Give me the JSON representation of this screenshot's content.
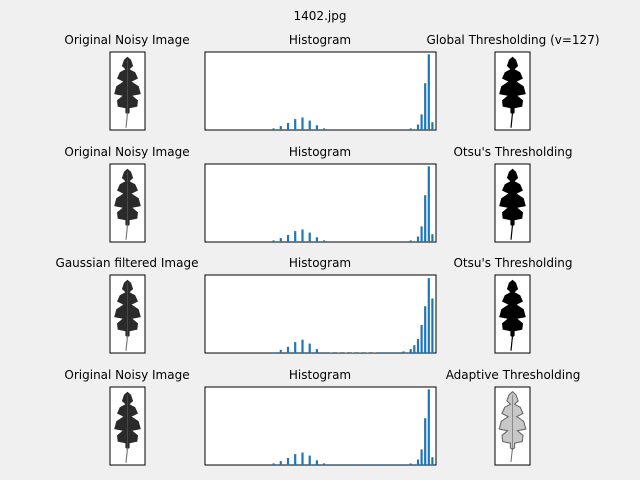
{
  "figure": {
    "suptitle": "1402.jpg"
  },
  "colors": {
    "figure_bg": "#f0f0f0",
    "bar": "#1f77b4",
    "leaf_gray": "#2a2a2a",
    "leaf_black": "#000000",
    "vein": "#7a7a7a"
  },
  "rows": [
    {
      "left_title": "Original Noisy Image",
      "hist_title": "Histogram",
      "right_title": "Global Thresholding (v=127)",
      "left_icon": "leaf-grayscale-icon",
      "right_icon": "leaf-binary-icon"
    },
    {
      "left_title": "Original Noisy Image",
      "hist_title": "Histogram",
      "right_title": "Otsu's Thresholding",
      "left_icon": "leaf-grayscale-icon",
      "right_icon": "leaf-binary-icon"
    },
    {
      "left_title": "Gaussian filtered Image",
      "hist_title": "Histogram",
      "right_title": "Otsu's Thresholding",
      "left_icon": "leaf-grayscale-icon",
      "right_icon": "leaf-binary-icon"
    },
    {
      "left_title": "Original Noisy Image",
      "hist_title": "Histogram",
      "right_title": "Adaptive Thresholding",
      "left_icon": "leaf-grayscale-icon",
      "right_icon": "leaf-adaptive-icon"
    }
  ],
  "chart_data": [
    {
      "type": "bar",
      "title": "Histogram",
      "xlabel": "",
      "ylabel": "",
      "xlim": [
        0,
        256
      ],
      "ylim": [
        0,
        1
      ],
      "grid": false,
      "series": [
        {
          "x": [
            76,
            84,
            92,
            100,
            108,
            116,
            124,
            132,
            140,
            148,
            156,
            164,
            172,
            180,
            188,
            196,
            204,
            212,
            220,
            228,
            236,
            240,
            244,
            248,
            252
          ],
          "y": [
            0.02,
            0.05,
            0.09,
            0.14,
            0.16,
            0.12,
            0.06,
            0.02,
            0.01,
            0.01,
            0.01,
            0.01,
            0.01,
            0.01,
            0.01,
            0.01,
            0.01,
            0.01,
            0.01,
            0.02,
            0.07,
            0.2,
            0.6,
            0.97,
            0.1
          ]
        }
      ]
    },
    {
      "type": "bar",
      "title": "Histogram",
      "xlabel": "",
      "ylabel": "",
      "xlim": [
        0,
        256
      ],
      "ylim": [
        0,
        1
      ],
      "grid": false,
      "series": [
        {
          "x": [
            76,
            84,
            92,
            100,
            108,
            116,
            124,
            132,
            140,
            148,
            156,
            164,
            172,
            180,
            188,
            196,
            204,
            212,
            220,
            228,
            236,
            240,
            244,
            248,
            252
          ],
          "y": [
            0.02,
            0.05,
            0.09,
            0.14,
            0.16,
            0.12,
            0.06,
            0.02,
            0.01,
            0.01,
            0.01,
            0.01,
            0.01,
            0.01,
            0.01,
            0.01,
            0.01,
            0.01,
            0.01,
            0.02,
            0.07,
            0.2,
            0.6,
            0.97,
            0.1
          ]
        }
      ]
    },
    {
      "type": "bar",
      "title": "Histogram",
      "xlabel": "",
      "ylabel": "",
      "xlim": [
        0,
        256
      ],
      "ylim": [
        0,
        1
      ],
      "grid": false,
      "series": [
        {
          "x": [
            76,
            84,
            92,
            100,
            108,
            116,
            124,
            132,
            140,
            148,
            156,
            164,
            172,
            180,
            188,
            196,
            204,
            212,
            220,
            228,
            232,
            236,
            240,
            244,
            248,
            252
          ],
          "y": [
            0.01,
            0.04,
            0.08,
            0.14,
            0.17,
            0.12,
            0.05,
            0.01,
            0.005,
            0.005,
            0.005,
            0.005,
            0.005,
            0.005,
            0.005,
            0.01,
            0.01,
            0.01,
            0.02,
            0.05,
            0.1,
            0.18,
            0.36,
            0.6,
            0.96,
            0.7
          ]
        }
      ]
    },
    {
      "type": "bar",
      "title": "Histogram",
      "xlabel": "",
      "ylabel": "",
      "xlim": [
        0,
        256
      ],
      "ylim": [
        0,
        1
      ],
      "grid": false,
      "series": [
        {
          "x": [
            76,
            84,
            92,
            100,
            108,
            116,
            124,
            132,
            140,
            148,
            156,
            164,
            172,
            180,
            188,
            196,
            204,
            212,
            220,
            228,
            236,
            240,
            244,
            248,
            252
          ],
          "y": [
            0.02,
            0.05,
            0.09,
            0.14,
            0.16,
            0.12,
            0.06,
            0.02,
            0.01,
            0.01,
            0.01,
            0.01,
            0.01,
            0.01,
            0.01,
            0.01,
            0.01,
            0.01,
            0.01,
            0.02,
            0.07,
            0.2,
            0.6,
            0.97,
            0.1
          ]
        }
      ]
    }
  ]
}
